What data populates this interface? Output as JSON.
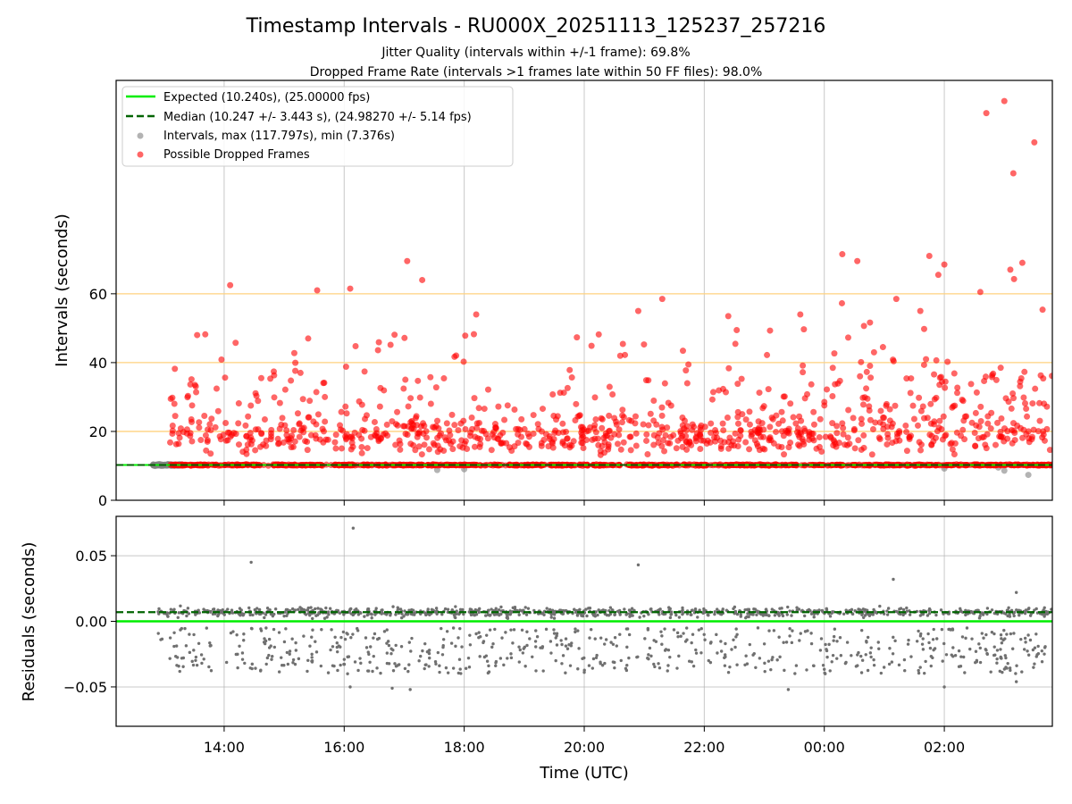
{
  "chart_data": {
    "type": "scatter",
    "title": "Timestamp Intervals - RU000X_20251113_125237_257216",
    "subtitles": [
      "Jitter Quality (intervals within +/-1 frame): 69.8%",
      "Dropped Frame Rate (intervals >1 frames late within 50 FF files): 98.0%"
    ],
    "xlabel": "Time (UTC)",
    "x_ticks": [
      "14:00",
      "16:00",
      "18:00",
      "20:00",
      "22:00",
      "00:00",
      "02:00"
    ],
    "x_tick_hours": [
      14,
      16,
      18,
      20,
      22,
      24,
      26
    ],
    "x_range_hours": [
      12.2,
      27.8
    ],
    "data_x_range_hours": [
      12.8,
      27.8
    ],
    "grid": true,
    "legend_position": "top-left",
    "panels": [
      {
        "name": "intervals",
        "ylabel": "Intervals (seconds)",
        "ylim": [
          0,
          122
        ],
        "y_ticks": [
          0,
          20,
          40,
          60
        ],
        "reference_lines": [
          20,
          40,
          60
        ],
        "reference_line_color": "#ffd27f"
      },
      {
        "name": "residuals",
        "ylabel": "Residuals (seconds)",
        "ylim": [
          -0.08,
          0.08
        ],
        "y_ticks": [
          0.05,
          0.0,
          -0.05
        ],
        "y_tick_labels": [
          "0.05",
          "0.00",
          "−0.05"
        ]
      }
    ],
    "expected_interval": 10.24,
    "median_interval": 10.247,
    "median_residual": 0.007,
    "expected_residual": 0.0,
    "max_interval": 117.797,
    "min_interval": 7.376,
    "series": [
      {
        "name": "Expected (10.240s), (25.00000 fps)",
        "kind": "line",
        "color": "#00ee00",
        "style": "solid"
      },
      {
        "name": "Median (10.247 +/- 3.443 s), (24.98270 +/- 5.14 fps)",
        "kind": "line",
        "color": "#006400",
        "style": "dashed"
      },
      {
        "name": "Intervals, max (117.797s), min (7.376s)",
        "kind": "points",
        "color": "#808080"
      },
      {
        "name": "Possible Dropped Frames",
        "kind": "points",
        "color": "#ff0000"
      }
    ],
    "dropped_outliers": [
      {
        "x": 14.1,
        "y": 62.5
      },
      {
        "x": 15.55,
        "y": 61
      },
      {
        "x": 16.1,
        "y": 61.5
      },
      {
        "x": 17.05,
        "y": 69.5
      },
      {
        "x": 17.3,
        "y": 64
      },
      {
        "x": 24.3,
        "y": 71.5
      },
      {
        "x": 24.55,
        "y": 69.5
      },
      {
        "x": 25.75,
        "y": 71
      },
      {
        "x": 26.0,
        "y": 68.5
      },
      {
        "x": 25.9,
        "y": 65.5
      },
      {
        "x": 26.7,
        "y": 112.5
      },
      {
        "x": 27.0,
        "y": 116
      },
      {
        "x": 27.15,
        "y": 95
      },
      {
        "x": 27.5,
        "y": 104
      },
      {
        "x": 27.3,
        "y": 69
      },
      {
        "x": 27.1,
        "y": 67
      },
      {
        "x": 26.6,
        "y": 60.5
      },
      {
        "x": 22.4,
        "y": 53.5
      },
      {
        "x": 21.3,
        "y": 58.5
      },
      {
        "x": 20.9,
        "y": 55
      },
      {
        "x": 23.6,
        "y": 54
      },
      {
        "x": 18.2,
        "y": 54
      },
      {
        "x": 15.4,
        "y": 47
      },
      {
        "x": 13.55,
        "y": 48
      },
      {
        "x": 25.2,
        "y": 58.5
      },
      {
        "x": 25.6,
        "y": 55
      }
    ],
    "residual_outliers": [
      {
        "x": 16.15,
        "y": 0.071
      },
      {
        "x": 14.45,
        "y": 0.045
      },
      {
        "x": 20.9,
        "y": 0.043
      },
      {
        "x": 25.15,
        "y": 0.032
      },
      {
        "x": 27.2,
        "y": 0.022
      },
      {
        "x": 16.1,
        "y": -0.05
      },
      {
        "x": 17.1,
        "y": -0.052
      },
      {
        "x": 23.4,
        "y": -0.052
      },
      {
        "x": 26.0,
        "y": -0.05
      },
      {
        "x": 27.2,
        "y": -0.046
      },
      {
        "x": 16.8,
        "y": -0.051
      }
    ],
    "scatter_generation": {
      "interval_base_count": 1100,
      "dropped_cloud_count": 950,
      "residual_count": 1500,
      "seed": 7
    }
  }
}
